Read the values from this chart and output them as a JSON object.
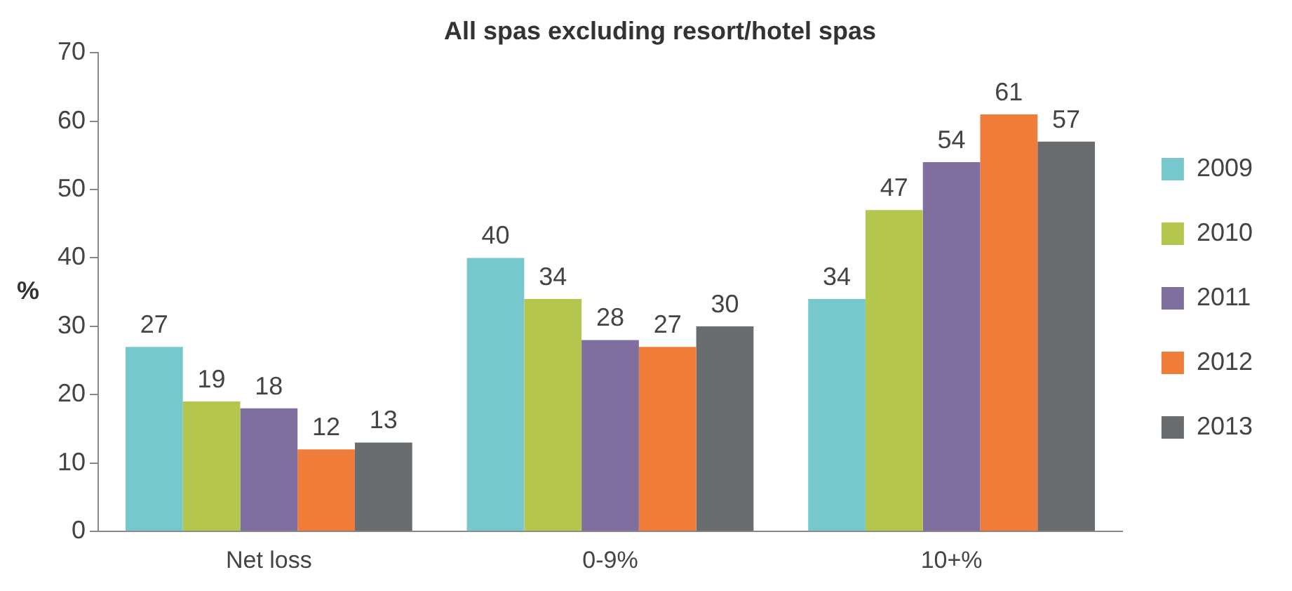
{
  "chart_data": {
    "type": "bar",
    "title": "All spas excluding resort/hotel spas",
    "ylabel": "%",
    "categories": [
      "Net loss",
      "0-9%",
      "10+%"
    ],
    "series": [
      {
        "name": "2009",
        "color": "#77c8cc",
        "values": [
          27,
          40,
          34
        ]
      },
      {
        "name": "2010",
        "color": "#b5c64f",
        "values": [
          19,
          34,
          47
        ]
      },
      {
        "name": "2011",
        "color": "#7f6f9f",
        "values": [
          18,
          28,
          54
        ]
      },
      {
        "name": "2012",
        "color": "#f07c3a",
        "values": [
          12,
          27,
          61
        ]
      },
      {
        "name": "2013",
        "color": "#6a6d70",
        "values": [
          13,
          30,
          57
        ]
      }
    ],
    "ylim": [
      0,
      70
    ],
    "yticks": [
      0,
      10,
      20,
      30,
      40,
      50,
      60,
      70
    ],
    "grid": false,
    "legend": "right",
    "data_labels": true
  }
}
